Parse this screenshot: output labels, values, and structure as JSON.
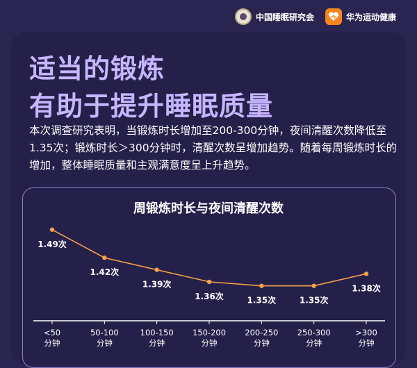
{
  "header": {
    "org_logo": {
      "icon": "society-seal-icon",
      "label": "中国睡眠研究会"
    },
    "app_logo": {
      "icon": "huawei-health-heart-icon",
      "label": "华为运动健康",
      "color": "#f5841f"
    }
  },
  "headline": {
    "line1": "适当的锻炼",
    "line2": "有助于提升睡眠质量"
  },
  "intro": "本次调查研究表明，当锻炼时长增加至200-300分钟，夜间清醒次数降低至1.35次；锻炼时长＞300分钟时，清醒次数呈增加趋势。随着每周锻炼时长的增加，整体睡眠质量和主观满意度呈上升趋势。",
  "chart_data": {
    "type": "line",
    "title": "周锻炼时长与夜间清醒次数",
    "categories": [
      "<50\n分钟",
      "50-100\n分钟",
      "100-150\n分钟",
      "150-200\n分钟",
      "200-250\n分钟",
      "250-300\n分钟",
      ">300\n分钟"
    ],
    "values": [
      1.49,
      1.42,
      1.39,
      1.36,
      1.35,
      1.35,
      1.38
    ],
    "data_labels": [
      "1.49次",
      "1.42次",
      "1.39次",
      "1.36次",
      "1.35次",
      "1.35次",
      "1.38次"
    ],
    "ylim": [
      1.32,
      1.5
    ],
    "line_color": "#f5a04a",
    "grid": false
  }
}
